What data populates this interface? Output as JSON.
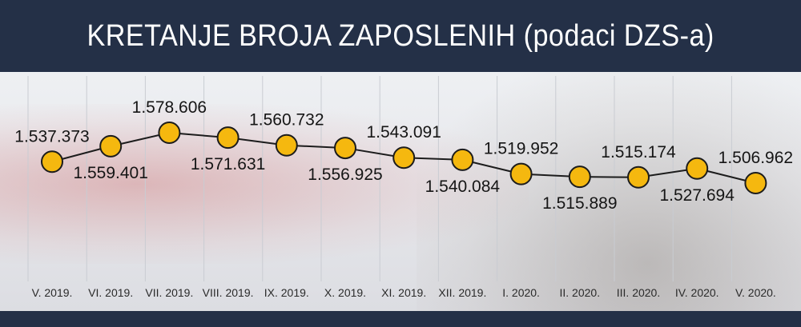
{
  "header": {
    "title": "KRETANJE BROJA ZAPOSLENIH (podaci DZS-a)"
  },
  "chart_data": {
    "type": "line",
    "title": "KRETANJE BROJA ZAPOSLENIH (podaci DZS-a)",
    "categories": [
      "V. 2019.",
      "VI. 2019.",
      "VII. 2019.",
      "VIII. 2019.",
      "IX. 2019.",
      "X. 2019.",
      "XI. 2019.",
      "XII. 2019.",
      "I. 2020.",
      "II. 2020.",
      "III. 2020.",
      "IV. 2020.",
      "V. 2020."
    ],
    "values": [
      1537373,
      1559401,
      1578606,
      1571631,
      1560732,
      1556925,
      1543091,
      1540084,
      1519952,
      1515889,
      1515174,
      1527694,
      1506962
    ],
    "value_labels": [
      "1.537.373",
      "1.559.401",
      "1.578.606",
      "1.571.631",
      "1.560.732",
      "1.556.925",
      "1.543.091",
      "1.540.084",
      "1.519.952",
      "1.515.889",
      "1.515.174",
      "1.527.694",
      "1.506.962"
    ],
    "label_positions": [
      "above",
      "below",
      "above",
      "below",
      "above",
      "below",
      "above",
      "below",
      "above",
      "below",
      "above",
      "below",
      "above"
    ],
    "xlabel": "",
    "ylabel": "",
    "grid": "vertical",
    "colors": {
      "marker": "#f5b80f",
      "marker_stroke": "#1c1c1c",
      "line": "#1c1c1c",
      "gridline": "#c9ccd2",
      "header": "#243047",
      "title": "#ffffff"
    }
  }
}
